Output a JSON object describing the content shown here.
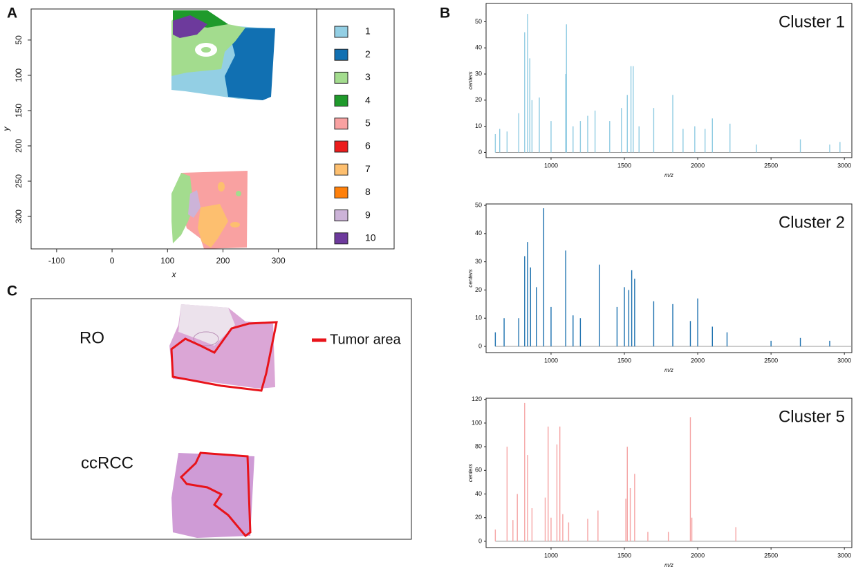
{
  "panel_labels": [
    "A",
    "B",
    "C"
  ],
  "chart_data": [
    {
      "type": "map",
      "xlabel": "x",
      "ylabel": "y",
      "xlim": [
        -146,
        369
      ],
      "ylim": [
        346,
        6
      ],
      "xticks": [
        -100,
        0,
        100,
        200,
        300
      ],
      "yticks": [
        50,
        100,
        150,
        200,
        250,
        300
      ],
      "series": [
        {
          "name": "1",
          "color": "#93cfe4"
        },
        {
          "name": "2",
          "color": "#1170b2"
        },
        {
          "name": "3",
          "color": "#a3dc8e"
        },
        {
          "name": "4",
          "color": "#1f9a2b"
        },
        {
          "name": "5",
          "color": "#f9a1a1"
        },
        {
          "name": "6",
          "color": "#ec1c1c"
        },
        {
          "name": "7",
          "color": "#fdbf6f"
        },
        {
          "name": "8",
          "color": "#ff800a"
        },
        {
          "name": "9",
          "color": "#ccb3d8"
        },
        {
          "name": "10",
          "color": "#6d3a9c"
        }
      ]
    },
    {
      "type": "bar",
      "title": "Cluster 1",
      "xlabel": "m/z",
      "ylabel": "centers",
      "color": "#8fcbe2",
      "xlim": [
        557,
        3051
      ],
      "ylim": [
        -2,
        57
      ],
      "xticks": [
        1000,
        1500,
        2000,
        2500,
        3000
      ],
      "yticks": [
        0,
        10,
        20,
        30,
        40,
        50
      ],
      "x": [
        620,
        650,
        700,
        780,
        820,
        840,
        855,
        870,
        920,
        1000,
        1100,
        1105,
        1150,
        1200,
        1250,
        1300,
        1400,
        1480,
        1520,
        1545,
        1560,
        1600,
        1700,
        1830,
        1900,
        1980,
        2050,
        2100,
        2220,
        2400,
        2700,
        2900,
        2970
      ],
      "values": [
        7,
        9,
        8,
        15,
        46,
        53,
        36,
        20,
        21,
        12,
        30,
        49,
        10,
        12,
        14,
        16,
        12,
        17,
        22,
        33,
        33,
        10,
        17,
        22,
        9,
        10,
        9,
        13,
        11,
        3,
        5,
        3,
        4
      ]
    },
    {
      "type": "bar",
      "title": "Cluster 2",
      "xlabel": "m/z",
      "ylabel": "centers",
      "color": "#1a6fae",
      "xlim": [
        557,
        3051
      ],
      "ylim": [
        -2.2,
        50.5
      ],
      "xticks": [
        1000,
        1500,
        2000,
        2500,
        3000
      ],
      "yticks": [
        0,
        10,
        20,
        30,
        40,
        50
      ],
      "x": [
        620,
        680,
        780,
        820,
        840,
        860,
        900,
        950,
        1000,
        1100,
        1150,
        1200,
        1330,
        1450,
        1500,
        1530,
        1550,
        1570,
        1700,
        1830,
        1950,
        2000,
        2100,
        2200,
        2500,
        2700,
        2900
      ],
      "values": [
        5,
        10,
        10,
        32,
        37,
        28,
        21,
        49,
        14,
        34,
        11,
        10,
        29,
        14,
        21,
        20,
        27,
        24,
        16,
        15,
        9,
        17,
        7,
        5,
        2,
        3,
        2
      ]
    },
    {
      "type": "bar",
      "title": "Cluster 5",
      "xlabel": "m/z",
      "ylabel": "centers",
      "color": "#f5a3a3",
      "xlim": [
        557,
        3051
      ],
      "ylim": [
        -5.3,
        121
      ],
      "xticks": [
        1000,
        1500,
        2000,
        2500,
        3000
      ],
      "yticks": [
        0,
        20,
        40,
        60,
        80,
        100,
        120
      ],
      "x": [
        620,
        700,
        740,
        770,
        820,
        840,
        870,
        960,
        980,
        1000,
        1040,
        1060,
        1080,
        1120,
        1250,
        1320,
        1510,
        1520,
        1540,
        1570,
        1660,
        1800,
        1950,
        1960,
        2260
      ],
      "values": [
        10,
        80,
        18,
        40,
        117,
        73,
        28,
        37,
        97,
        20,
        82,
        97,
        23,
        16,
        19,
        26,
        36,
        80,
        45,
        57,
        8,
        8,
        105,
        20,
        12
      ]
    }
  ],
  "panel_c": {
    "labels": [
      "RO",
      "ccRCC"
    ],
    "legend": "Tumor area"
  }
}
